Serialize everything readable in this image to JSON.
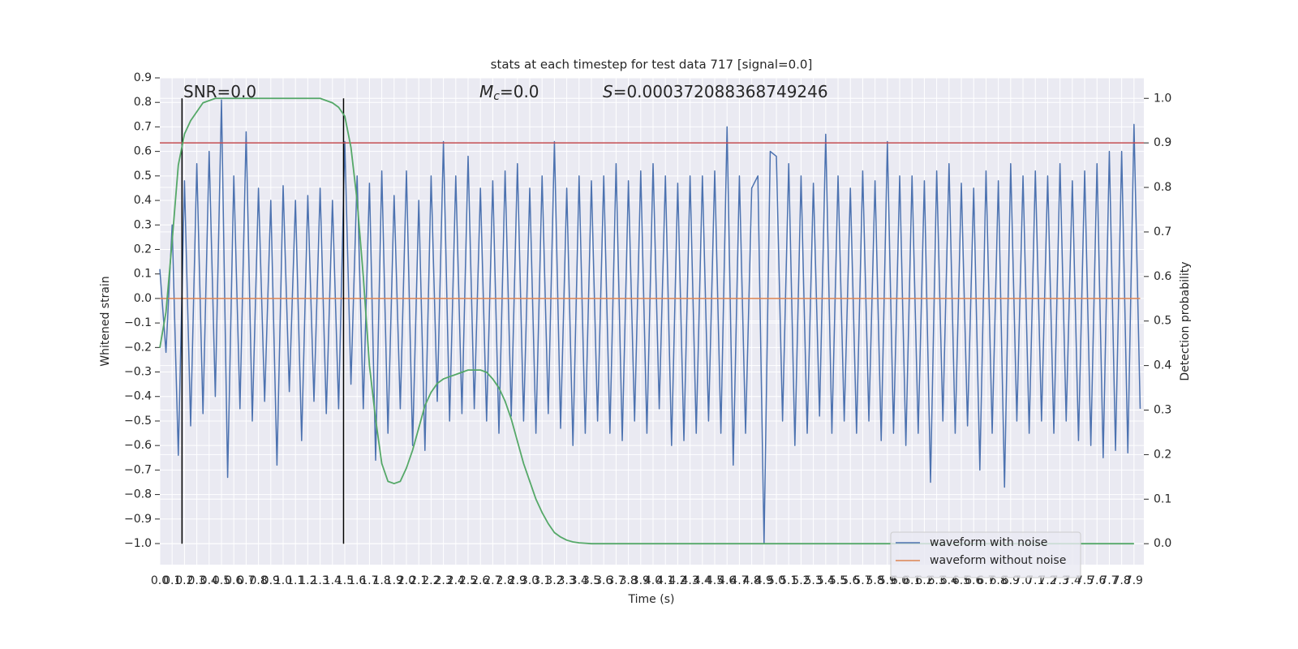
{
  "chart_data": {
    "type": "line",
    "title": "stats at each timestep for test data 717 [signal=0.0]",
    "xlabel": "Time (s)",
    "ylabel": "Whitened strain",
    "y2label": "Detection probability",
    "xlim": [
      0,
      7.98
    ],
    "ylim": [
      -1.086,
      0.9
    ],
    "y2lim": [
      -0.047,
      1.046
    ],
    "grid": true,
    "background": "#eaeaf2",
    "legend": "lower right",
    "xticks": [
      {
        "value": 0,
        "label": "0.0"
      },
      0.1,
      0.2,
      0.3,
      0.4,
      0.5,
      0.6,
      0.7,
      0.8,
      0.9,
      {
        "value": 1,
        "label": "1.0"
      },
      1.1,
      1.2,
      1.3,
      1.4,
      1.5,
      1.6,
      1.7,
      1.8,
      1.9,
      {
        "value": 2,
        "label": "2.0"
      },
      2.1,
      2.2,
      2.3,
      2.4,
      2.5,
      2.6,
      2.7,
      2.8,
      2.9,
      {
        "value": 3,
        "label": "3.0"
      },
      3.1,
      3.2,
      3.3,
      3.4,
      3.5,
      3.6,
      3.7,
      3.8,
      3.9,
      {
        "value": 4,
        "label": "4.0"
      },
      4.1,
      4.2,
      4.3,
      4.4,
      4.5,
      4.6,
      4.7,
      4.8,
      4.9,
      {
        "value": 5,
        "label": "5.0"
      },
      5.1,
      5.2,
      5.3,
      5.4,
      5.5,
      5.6,
      5.7,
      5.8,
      5.9,
      {
        "value": 6,
        "label": "6.0"
      },
      6.1,
      6.2,
      6.3,
      6.4,
      6.5,
      6.6,
      6.7,
      6.8,
      6.9,
      {
        "value": 7,
        "label": "7.0"
      },
      7.1,
      7.2,
      7.3,
      7.4,
      7.5,
      7.6,
      7.7,
      7.8,
      7.9
    ],
    "yticks": [
      0.9,
      0.8,
      0.7,
      0.6,
      0.5,
      0.4,
      0.3,
      0.2,
      0.1,
      {
        "value": 0,
        "label": "0.0"
      },
      {
        "value": -0.1,
        "label": "−0.1"
      },
      {
        "value": -0.2,
        "label": "−0.2"
      },
      {
        "value": -0.3,
        "label": "−0.3"
      },
      {
        "value": -0.4,
        "label": "−0.4"
      },
      {
        "value": -0.5,
        "label": "−0.5"
      },
      {
        "value": -0.6,
        "label": "−0.6"
      },
      {
        "value": -0.7,
        "label": "−0.7"
      },
      {
        "value": -0.8,
        "label": "−0.8"
      },
      {
        "value": -0.9,
        "label": "−0.9"
      },
      {
        "value": -1,
        "label": "−1.0"
      }
    ],
    "y2ticks": [
      {
        "value": 1,
        "label": "1.0"
      },
      0.9,
      0.8,
      0.7,
      0.6,
      0.5,
      0.4,
      0.3,
      0.2,
      0.1,
      {
        "value": 0,
        "label": "0.0"
      }
    ],
    "annotations": [
      {
        "text": "SNR=0.0"
      },
      {
        "symbol": "M",
        "sub": "c",
        "text": "=0.0"
      },
      {
        "symbol": "S",
        "text": "=0.000372088368749246"
      }
    ],
    "vlines": {
      "x": [
        0.18,
        1.49
      ],
      "ymin": 0,
      "ymax": 1,
      "axis": "y2",
      "color": "#000000"
    },
    "hline": {
      "value": 0.9,
      "axis": "y2",
      "color": "#c44e52"
    },
    "series": [
      {
        "name": "waveform with noise",
        "color": "#4c72b0",
        "x": [
          0,
          0.05,
          0.1,
          0.15,
          0.2,
          0.25,
          0.3,
          0.35,
          0.4,
          0.45,
          0.5,
          0.55,
          0.6,
          0.65,
          0.7,
          0.75,
          0.8,
          0.85,
          0.9,
          0.95,
          1,
          1.05,
          1.1,
          1.15,
          1.2,
          1.25,
          1.3,
          1.35,
          1.4,
          1.45,
          1.5,
          1.55,
          1.6,
          1.65,
          1.7,
          1.75,
          1.8,
          1.85,
          1.9,
          1.95,
          2,
          2.05,
          2.1,
          2.15,
          2.2,
          2.25,
          2.3,
          2.35,
          2.4,
          2.45,
          2.5,
          2.55,
          2.6,
          2.65,
          2.7,
          2.75,
          2.8,
          2.85,
          2.9,
          2.95,
          3,
          3.05,
          3.1,
          3.15,
          3.2,
          3.25,
          3.3,
          3.35,
          3.4,
          3.45,
          3.5,
          3.55,
          3.6,
          3.65,
          3.7,
          3.75,
          3.8,
          3.85,
          3.9,
          3.95,
          4,
          4.05,
          4.1,
          4.15,
          4.2,
          4.25,
          4.3,
          4.35,
          4.4,
          4.45,
          4.5,
          4.55,
          4.6,
          4.65,
          4.7,
          4.75,
          4.8,
          4.85,
          4.9,
          4.95,
          5,
          5.05,
          5.1,
          5.15,
          5.2,
          5.25,
          5.3,
          5.35,
          5.4,
          5.45,
          5.5,
          5.55,
          5.6,
          5.65,
          5.7,
          5.75,
          5.8,
          5.85,
          5.9,
          5.95,
          6,
          6.05,
          6.1,
          6.15,
          6.2,
          6.25,
          6.3,
          6.35,
          6.4,
          6.45,
          6.5,
          6.55,
          6.6,
          6.65,
          6.7,
          6.75,
          6.8,
          6.85,
          6.9,
          6.95,
          7,
          7.05,
          7.1,
          7.15,
          7.2,
          7.25,
          7.3,
          7.35,
          7.4,
          7.45,
          7.5,
          7.55,
          7.6,
          7.65,
          7.7,
          7.75,
          7.8,
          7.85,
          7.9,
          7.95
        ],
        "values": [
          0.12,
          -0.22,
          0.3,
          -0.64,
          0.48,
          -0.52,
          0.55,
          -0.47,
          0.6,
          -0.4,
          0.81,
          -0.73,
          0.5,
          -0.45,
          0.68,
          -0.5,
          0.45,
          -0.42,
          0.4,
          -0.68,
          0.46,
          -0.38,
          0.4,
          -0.58,
          0.42,
          -0.42,
          0.45,
          -0.47,
          0.4,
          -0.45,
          0.64,
          -0.35,
          0.5,
          -0.45,
          0.47,
          -0.66,
          0.52,
          -0.55,
          0.42,
          -0.45,
          0.52,
          -0.6,
          0.4,
          -0.62,
          0.5,
          -0.42,
          0.64,
          -0.5,
          0.5,
          -0.47,
          0.58,
          -0.45,
          0.45,
          -0.5,
          0.48,
          -0.55,
          0.52,
          -0.48,
          0.55,
          -0.5,
          0.45,
          -0.55,
          0.5,
          -0.47,
          0.64,
          -0.53,
          0.45,
          -0.6,
          0.5,
          -0.55,
          0.48,
          -0.5,
          0.5,
          -0.55,
          0.55,
          -0.58,
          0.48,
          -0.5,
          0.52,
          -0.55,
          0.55,
          -0.45,
          0.5,
          -0.6,
          0.47,
          -0.58,
          0.5,
          -0.55,
          0.5,
          -0.5,
          0.52,
          -0.55,
          0.7,
          -0.68,
          0.5,
          -0.55,
          0.45,
          0.5,
          -1.0,
          0.6,
          0.58,
          -0.5,
          0.55,
          -0.6,
          0.5,
          -0.55,
          0.47,
          -0.48,
          0.67,
          -0.55,
          0.5,
          -0.5,
          0.45,
          -0.55,
          0.52,
          -0.5,
          0.48,
          -0.58,
          0.64,
          -0.55,
          0.5,
          -0.6,
          0.5,
          -0.55,
          0.48,
          -0.75,
          0.52,
          -0.5,
          0.55,
          -0.55,
          0.47,
          -0.52,
          0.45,
          -0.7,
          0.52,
          -0.55,
          0.48,
          -0.77,
          0.55,
          -0.5,
          0.5,
          -0.55,
          0.52,
          -0.5,
          0.5,
          -0.55,
          0.55,
          -0.5,
          0.48,
          -0.58,
          0.52,
          -0.6,
          0.55,
          -0.65,
          0.6,
          -0.62,
          0.6,
          -0.63,
          0.71,
          -0.45
        ]
      },
      {
        "name": "waveform without noise",
        "color": "#dd8452",
        "x": [
          0,
          7.95
        ],
        "values": [
          0,
          0
        ]
      },
      {
        "color": "#55a868",
        "axis": "y2",
        "x": [
          0,
          0.05,
          0.1,
          0.15,
          0.2,
          0.25,
          0.3,
          0.35,
          0.4,
          0.45,
          0.5,
          0.55,
          0.6,
          0.65,
          0.7,
          0.75,
          0.8,
          0.85,
          0.9,
          0.95,
          1,
          1.05,
          1.1,
          1.15,
          1.2,
          1.25,
          1.3,
          1.35,
          1.4,
          1.45,
          1.5,
          1.55,
          1.6,
          1.65,
          1.7,
          1.75,
          1.8,
          1.85,
          1.9,
          1.95,
          2,
          2.05,
          2.1,
          2.15,
          2.2,
          2.25,
          2.3,
          2.35,
          2.4,
          2.45,
          2.5,
          2.55,
          2.6,
          2.65,
          2.7,
          2.75,
          2.8,
          2.85,
          2.9,
          2.95,
          3,
          3.05,
          3.1,
          3.15,
          3.2,
          3.25,
          3.3,
          3.35,
          3.4,
          3.45,
          3.5,
          7.9
        ],
        "values": [
          0.44,
          0.52,
          0.68,
          0.85,
          0.92,
          0.95,
          0.97,
          0.99,
          0.995,
          1,
          1,
          1,
          1,
          1,
          1,
          1,
          1,
          1,
          1,
          1,
          1,
          1,
          1,
          1,
          1,
          1,
          1,
          0.995,
          0.99,
          0.98,
          0.96,
          0.89,
          0.77,
          0.6,
          0.4,
          0.28,
          0.18,
          0.14,
          0.135,
          0.14,
          0.17,
          0.21,
          0.26,
          0.31,
          0.34,
          0.36,
          0.37,
          0.375,
          0.38,
          0.385,
          0.39,
          0.39,
          0.39,
          0.385,
          0.37,
          0.35,
          0.32,
          0.28,
          0.23,
          0.18,
          0.14,
          0.1,
          0.07,
          0.045,
          0.025,
          0.015,
          0.008,
          0.004,
          0.002,
          0.001,
          0,
          0
        ]
      }
    ]
  }
}
